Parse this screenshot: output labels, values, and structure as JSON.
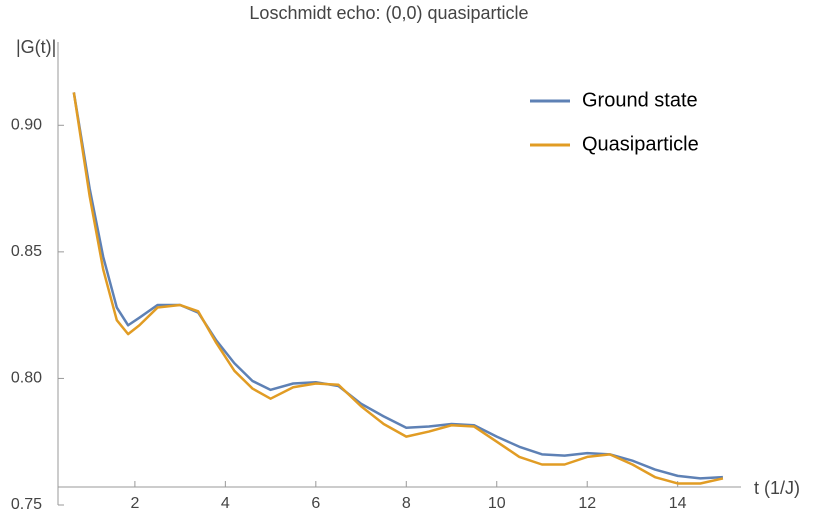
{
  "chart_data": {
    "type": "line",
    "title": "Loschmidt echo: (0,0) quasiparticle",
    "xlabel": "t (1/J)",
    "ylabel": "|G(t)|",
    "x": [
      0.65,
      1.0,
      1.3,
      1.6,
      1.85,
      2.1,
      2.5,
      3.0,
      3.4,
      3.8,
      4.2,
      4.6,
      5.0,
      5.5,
      6.0,
      6.5,
      7.0,
      7.5,
      8.0,
      8.5,
      9.0,
      9.5,
      10.0,
      10.5,
      11.0,
      11.5,
      12.0,
      12.5,
      13.0,
      13.5,
      14.0,
      14.5,
      15.0
    ],
    "series": [
      {
        "name": "Ground state",
        "color": "#5e81b5",
        "values": [
          0.913,
          0.875,
          0.848,
          0.828,
          0.821,
          0.824,
          0.829,
          0.829,
          0.826,
          0.815,
          0.806,
          0.799,
          0.7955,
          0.798,
          0.7985,
          0.797,
          0.79,
          0.785,
          0.7805,
          0.781,
          0.782,
          0.7815,
          0.777,
          0.773,
          0.77,
          0.7695,
          0.7705,
          0.77,
          0.7675,
          0.764,
          0.7615,
          0.7605,
          0.761
        ]
      },
      {
        "name": "Quasiparticle",
        "color": "#e19c24",
        "values": [
          0.913,
          0.872,
          0.843,
          0.823,
          0.8175,
          0.821,
          0.828,
          0.829,
          0.8265,
          0.814,
          0.803,
          0.796,
          0.792,
          0.7965,
          0.798,
          0.7975,
          0.789,
          0.782,
          0.777,
          0.779,
          0.7815,
          0.781,
          0.775,
          0.769,
          0.766,
          0.766,
          0.769,
          0.77,
          0.766,
          0.761,
          0.7585,
          0.7585,
          0.7605
        ]
      }
    ],
    "xlim": [
      0.3,
      15.4
    ],
    "xticks": [
      2,
      4,
      6,
      8,
      10,
      12,
      14
    ],
    "ylim": [
      0.75,
      0.925
    ],
    "yticks": [
      0.75,
      {
        "value": 0.8,
        "label": "0.80"
      },
      0.85,
      {
        "value": 0.9,
        "label": "0.90"
      }
    ],
    "legend": "upper right"
  }
}
